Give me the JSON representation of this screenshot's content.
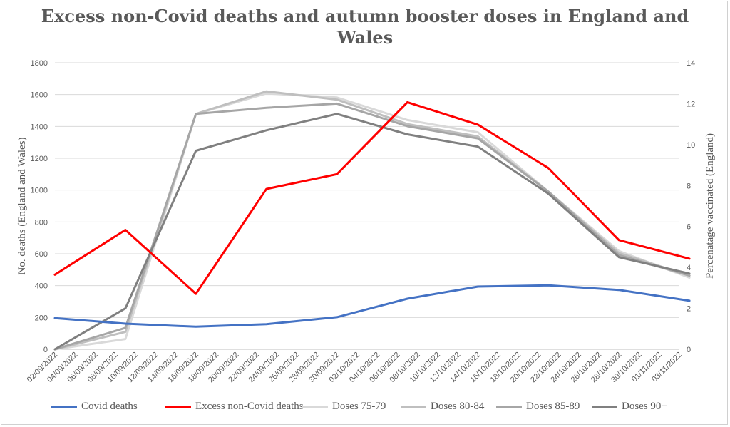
{
  "chart_data": {
    "type": "line",
    "title": "Excess non-Covid deaths and autumn booster doses in England and Wales",
    "title_lines": [
      "Excess non-Covid deaths and autumn booster doses in England and",
      "Wales"
    ],
    "ylabel": "No. deaths (England and Wales)",
    "y2label": "Percenatage vaccinated (England)",
    "ylim": [
      0,
      1800
    ],
    "y2lim": [
      0,
      14
    ],
    "y_ticks": [
      "0",
      "200",
      "400",
      "600",
      "800",
      "1000",
      "1200",
      "1400",
      "1600",
      "1800"
    ],
    "y2_ticks": [
      "0",
      "2",
      "4",
      "6",
      "8",
      "10",
      "12",
      "14"
    ],
    "x_labels": [
      "02/09/2022",
      "04/09/2022",
      "06/09/2022",
      "08/09/2022",
      "10/09/2022",
      "12/09/2022",
      "14/09/2022",
      "16/09/2022",
      "18/09/2022",
      "20/09/2022",
      "22/09/2022",
      "24/09/2022",
      "26/09/2022",
      "28/09/2022",
      "30/09/2022",
      "02/10/2022",
      "04/10/2022",
      "06/10/2022",
      "08/10/2022",
      "10/10/2022",
      "12/10/2022",
      "14/10/2022",
      "16/10/2022",
      "18/10/2022",
      "20/10/2022",
      "22/10/2022",
      "24/10/2022",
      "26/10/2022",
      "28/10/2022",
      "30/10/2022",
      "01/11/2022",
      "03/11/2022"
    ],
    "x_days": [
      0,
      7,
      14,
      21,
      28,
      35,
      42,
      49,
      56,
      63
    ],
    "series": [
      {
        "name": "Covid deaths",
        "axis": "left",
        "color": "#4472c4",
        "values": [
          196,
          161,
          142,
          158,
          202,
          318,
          394,
          402,
          373,
          305
        ]
      },
      {
        "name": "Excess non-Covid deaths",
        "axis": "left",
        "color": "#ff0000",
        "values": [
          469,
          750,
          349,
          1007,
          1100,
          1552,
          1411,
          1138,
          686,
          569
        ]
      },
      {
        "name": "Doses 75-79",
        "axis": "right",
        "color": "#d9d9d9",
        "values": [
          0,
          0.5,
          11.5,
          12.5,
          12.3,
          11.2,
          10.6,
          7.7,
          4.8,
          3.5
        ]
      },
      {
        "name": "Doses 80-84",
        "axis": "right",
        "color": "#bfbfbf",
        "values": [
          0,
          0.85,
          11.5,
          12.6,
          12.2,
          11.0,
          10.4,
          7.7,
          4.7,
          3.6
        ]
      },
      {
        "name": "Doses 85-89",
        "axis": "right",
        "color": "#a6a6a6",
        "values": [
          0,
          1.05,
          11.5,
          11.8,
          12.0,
          10.9,
          10.3,
          7.7,
          4.6,
          3.6
        ]
      },
      {
        "name": "Doses 90+",
        "axis": "right",
        "color": "#808080",
        "values": [
          0,
          2.0,
          9.7,
          10.7,
          11.5,
          10.5,
          9.9,
          7.6,
          4.5,
          3.7
        ]
      }
    ],
    "legend_position": "bottom"
  }
}
